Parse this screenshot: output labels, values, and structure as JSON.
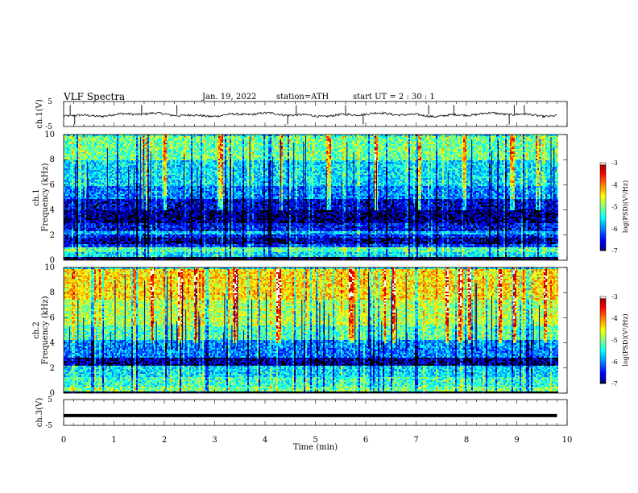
{
  "header": {
    "title": "VLF  Spectra",
    "date": "Jan. 19, 2022",
    "station": "station=ATH",
    "start": "start  UT  =   2  : 30 : 1"
  },
  "chart_data": {
    "type": "heatmap",
    "title": "VLF  Spectra",
    "xlabel": "Time  (min)",
    "xlim": [
      0,
      10
    ],
    "xticks": [
      "0",
      "1",
      "2",
      "3",
      "4",
      "5",
      "6",
      "7",
      "8",
      "9",
      "10"
    ],
    "data_end_min": 9.8,
    "panels": [
      {
        "name": "ch1-waveform",
        "type": "line",
        "ylabel": "ch.1(V)",
        "ylim": [
          -5,
          5
        ],
        "yticks": [
          "5",
          "-5"
        ],
        "baseline": -0.3,
        "spike_times_min": [
          0.13,
          0.22,
          1.55,
          2.25,
          4.45,
          4.62,
          5.6,
          5.95,
          7.25,
          7.75,
          8.85,
          8.95,
          9.15
        ]
      },
      {
        "name": "ch1-spectrogram",
        "type": "heatmap",
        "ylabel": "ch.1\nFrequency  (kHz)",
        "ylim": [
          0,
          10
        ],
        "yticks": [
          "0",
          "2",
          "4",
          "6",
          "8",
          "10"
        ],
        "colorbar": {
          "label": "log(PSD)(V²/Hz)",
          "range": [
            -7,
            -3
          ],
          "ticks": [
            "-3",
            "-4",
            "-5",
            "-6",
            "-7"
          ]
        },
        "bands": [
          {
            "from_khz": 0,
            "to_khz": 0.3,
            "log_psd": -7.2
          },
          {
            "from_khz": 0.3,
            "to_khz": 0.7,
            "log_psd": -5.6
          },
          {
            "from_khz": 0.7,
            "to_khz": 1.1,
            "log_psd": -5.2
          },
          {
            "from_khz": 1.1,
            "to_khz": 1.4,
            "log_psd": -6.3
          },
          {
            "from_khz": 1.4,
            "to_khz": 1.8,
            "log_psd": -6.8
          },
          {
            "from_khz": 1.8,
            "to_khz": 2.1,
            "log_psd": -6.4
          },
          {
            "from_khz": 2.1,
            "to_khz": 2.4,
            "log_psd": -5.8
          },
          {
            "from_khz": 2.4,
            "to_khz": 3.0,
            "log_psd": -6.5
          },
          {
            "from_khz": 3.0,
            "to_khz": 4.0,
            "log_psd": -6.9
          },
          {
            "from_khz": 4.0,
            "to_khz": 5.0,
            "log_psd": -6.6
          },
          {
            "from_khz": 5.0,
            "to_khz": 6.0,
            "log_psd": -6.0
          },
          {
            "from_khz": 6.0,
            "to_khz": 8.0,
            "log_psd": -5.6
          },
          {
            "from_khz": 8.0,
            "to_khz": 10.0,
            "log_psd": -5.1
          }
        ],
        "hot_times_min": [
          1.6,
          2.0,
          3.1,
          4.3,
          5.25,
          6.2,
          7.05,
          7.95,
          8.9,
          9.4
        ]
      },
      {
        "name": "ch2-spectrogram",
        "type": "heatmap",
        "ylabel": "ch.2\nFrequency  (kHz)",
        "ylim": [
          0,
          10
        ],
        "yticks": [
          "0",
          "2",
          "4",
          "6",
          "8",
          "10"
        ],
        "colorbar": {
          "label": "log(PSD)(V²/Hz)",
          "range": [
            -7,
            -3
          ],
          "ticks": [
            "-3",
            "-4",
            "-5",
            "-6",
            "-7"
          ]
        },
        "bands": [
          {
            "from_khz": 0,
            "to_khz": 0.2,
            "log_psd": -7.2
          },
          {
            "from_khz": 0.2,
            "to_khz": 0.6,
            "log_psd": -5.0
          },
          {
            "from_khz": 0.6,
            "to_khz": 1.4,
            "log_psd": -5.3
          },
          {
            "from_khz": 1.4,
            "to_khz": 2.2,
            "log_psd": -5.6
          },
          {
            "from_khz": 2.2,
            "to_khz": 2.9,
            "log_psd": -6.8
          },
          {
            "from_khz": 2.9,
            "to_khz": 3.6,
            "log_psd": -6.0
          },
          {
            "from_khz": 3.6,
            "to_khz": 4.3,
            "log_psd": -5.9
          },
          {
            "from_khz": 4.3,
            "to_khz": 5.5,
            "log_psd": -5.2
          },
          {
            "from_khz": 5.5,
            "to_khz": 7.5,
            "log_psd": -4.8
          },
          {
            "from_khz": 7.5,
            "to_khz": 10.0,
            "log_psd": -4.4
          }
        ],
        "hot_times_min": [
          1.75,
          2.3,
          2.6,
          3.4,
          4.25,
          5.7,
          6.35,
          6.55,
          7.6,
          7.85,
          8.05,
          8.65,
          8.95,
          9.55
        ]
      },
      {
        "name": "ch3-waveform",
        "type": "line",
        "ylabel": "ch.3(V)",
        "ylim": [
          -5,
          5
        ],
        "yticks": [
          "5",
          "-5"
        ],
        "baseline": -1.2
      }
    ]
  }
}
